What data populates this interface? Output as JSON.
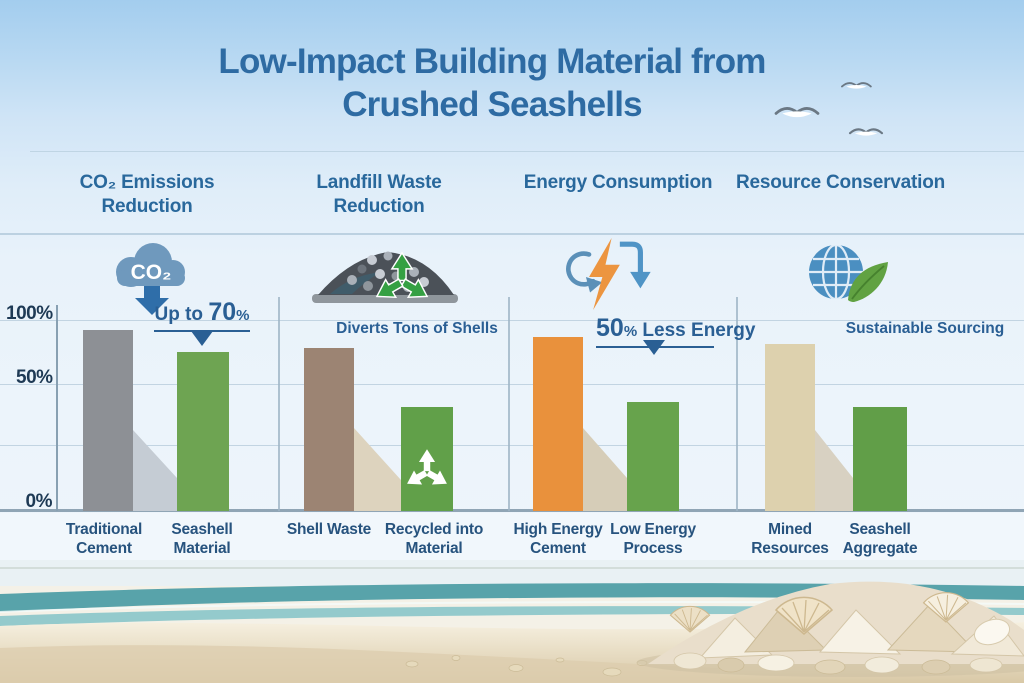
{
  "title": {
    "line1": "Low-Impact Building Material from",
    "line2": "Crushed Seashells"
  },
  "y_axis": {
    "ticks": [
      "100%",
      "50%",
      "0%"
    ]
  },
  "icons": {
    "co2_label": "CO₂",
    "co2_icon": "co2-cloud-down-arrow",
    "landfill_icon": "shell-pile-recycle",
    "energy_icon": "lightning-cycle-arrows",
    "resource_icon": "globe-leaf"
  },
  "panels": [
    {
      "header": "CO₂ Emissions Reduction",
      "annotation": {
        "lead": "Up to ",
        "value": "70",
        "pct": "%"
      },
      "bars": [
        {
          "label": "Traditional Cement",
          "value": 92,
          "color": "#8d9095"
        },
        {
          "label": "Seashell Material",
          "value": 75,
          "color": "#6ea452"
        }
      ],
      "shadow_color": "#c5ccd4"
    },
    {
      "header": "Landfill Waste Reduction",
      "annotation": {
        "text": "Diverts Tons of Shells"
      },
      "bars": [
        {
          "label": "Shell Waste",
          "value": 78,
          "color": "#9c8473"
        },
        {
          "label": "Recycled into Material",
          "value": 41,
          "color": "#61a049"
        }
      ],
      "shadow_color": "#ddd3be"
    },
    {
      "header": "Energy Consumption",
      "annotation": {
        "value": "50",
        "pct": "%",
        "tail": " Less Energy"
      },
      "bars": [
        {
          "label": "High Energy Cement",
          "value": 87,
          "color": "#e9913c"
        },
        {
          "label": "Low Energy Process",
          "value": 43,
          "color": "#67a34c"
        }
      ],
      "shadow_color": "#d6cdb8"
    },
    {
      "header": "Resource Conservation",
      "annotation": {
        "text": "Sustainable Sourcing"
      },
      "bars": [
        {
          "label": "Mined Resources",
          "value": 81,
          "color": "#ddd1ae"
        },
        {
          "label": "Seashell Aggregate",
          "value": 41,
          "color": "#619e48"
        }
      ],
      "shadow_color": "#d8d1c2"
    }
  ],
  "chart_data": [
    {
      "type": "bar",
      "title": "CO₂ Emissions Reduction",
      "categories": [
        "Traditional Cement",
        "Seashell Material"
      ],
      "values": [
        92,
        75
      ],
      "annotation": "Up to 70%",
      "ylabel": "%",
      "ylim": [
        0,
        100
      ],
      "yticks": [
        "0%",
        "50%",
        "100%"
      ],
      "grid": true
    },
    {
      "type": "bar",
      "title": "Landfill Waste Reduction",
      "categories": [
        "Shell Waste",
        "Recycled into Material"
      ],
      "values": [
        78,
        41
      ],
      "annotation": "Diverts Tons of Shells",
      "ylabel": "%",
      "ylim": [
        0,
        100
      ],
      "grid": true
    },
    {
      "type": "bar",
      "title": "Energy Consumption",
      "categories": [
        "High Energy Cement",
        "Low Energy Process"
      ],
      "values": [
        87,
        43
      ],
      "annotation": "50% Less Energy",
      "ylabel": "%",
      "ylim": [
        0,
        100
      ],
      "grid": true
    },
    {
      "type": "bar",
      "title": "Resource Conservation",
      "categories": [
        "Mined Resources",
        "Seashell Aggregate"
      ],
      "values": [
        81,
        41
      ],
      "annotation": "Sustainable Sourcing",
      "ylabel": "%",
      "ylim": [
        0,
        100
      ],
      "grid": true
    }
  ],
  "colors": {
    "title": "#2e6ba3",
    "header": "#29689c",
    "annotation": "#2a5f94",
    "axis_label": "#1e3a55",
    "xlabel": "#27537e",
    "bar_gray": "#8d9095",
    "bar_green": "#6ea452",
    "bar_brown": "#9c8473",
    "bar_orange": "#e9913c",
    "bar_tan": "#ddd1ae"
  }
}
